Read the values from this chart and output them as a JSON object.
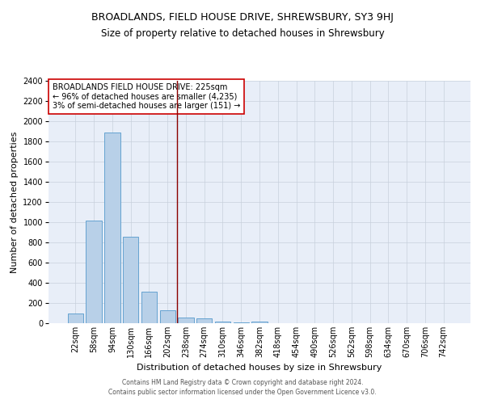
{
  "title1": "BROADLANDS, FIELD HOUSE DRIVE, SHREWSBURY, SY3 9HJ",
  "title2": "Size of property relative to detached houses in Shrewsbury",
  "xlabel": "Distribution of detached houses by size in Shrewsbury",
  "ylabel": "Number of detached properties",
  "footnote1": "Contains HM Land Registry data © Crown copyright and database right 2024.",
  "footnote2": "Contains public sector information licensed under the Open Government Licence v3.0.",
  "bins": [
    "22sqm",
    "58sqm",
    "94sqm",
    "130sqm",
    "166sqm",
    "202sqm",
    "238sqm",
    "274sqm",
    "310sqm",
    "346sqm",
    "382sqm",
    "418sqm",
    "454sqm",
    "490sqm",
    "526sqm",
    "562sqm",
    "598sqm",
    "634sqm",
    "670sqm",
    "706sqm",
    "742sqm"
  ],
  "values": [
    95,
    1020,
    1890,
    855,
    315,
    130,
    55,
    45,
    18,
    12,
    18,
    0,
    0,
    0,
    0,
    0,
    0,
    0,
    0,
    0,
    0
  ],
  "bar_color": "#b8d0e8",
  "bar_edge_color": "#5599cc",
  "vline_color": "#8b0000",
  "annotation_text": "BROADLANDS FIELD HOUSE DRIVE: 225sqm\n← 96% of detached houses are smaller (4,235)\n3% of semi-detached houses are larger (151) →",
  "annotation_box_color": "white",
  "annotation_box_edge_color": "#cc0000",
  "ylim": [
    0,
    2400
  ],
  "yticks": [
    0,
    200,
    400,
    600,
    800,
    1000,
    1200,
    1400,
    1600,
    1800,
    2000,
    2200,
    2400
  ],
  "grid_color": "#c8d0dc",
  "bg_color": "#e8eef8",
  "title_fontsize": 9,
  "subtitle_fontsize": 8.5,
  "axis_label_fontsize": 8,
  "tick_fontsize": 7,
  "annotation_fontsize": 7,
  "footnote_fontsize": 5.5
}
